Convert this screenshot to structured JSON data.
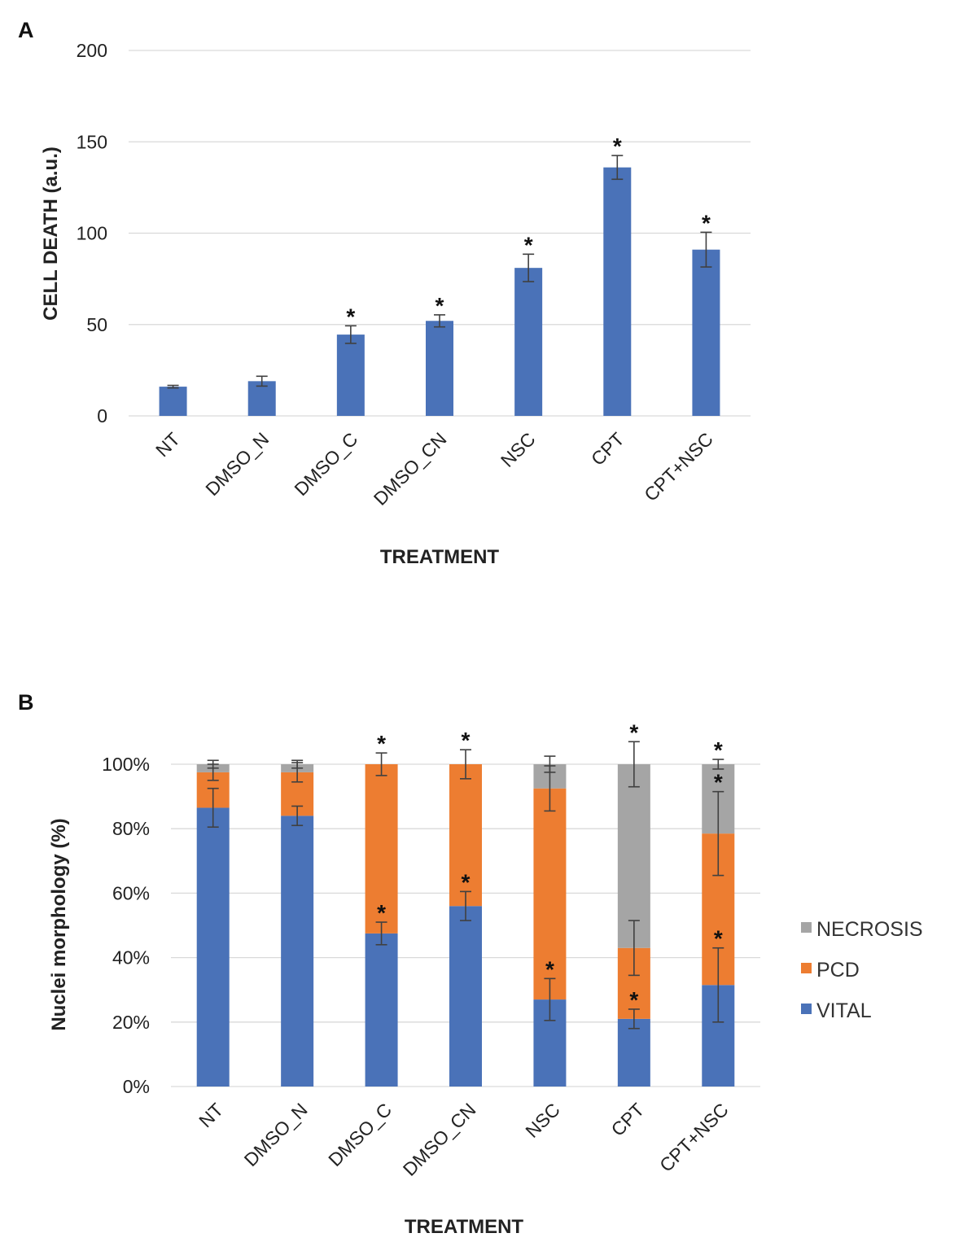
{
  "colors": {
    "vital": "#4a72b8",
    "pcd": "#ed7d31",
    "necrosis": "#a5a5a5",
    "grid": "#d9d9d9",
    "errorbar": "#404040"
  },
  "chart_data": [
    {
      "panel": "A",
      "type": "bar",
      "categories": [
        "NT",
        "DMSO_N",
        "DMSO_C",
        "DMSO_CN",
        "NSC",
        "CPT",
        "CPT+NSC"
      ],
      "values": [
        16,
        19,
        44.5,
        52,
        81,
        136,
        91
      ],
      "errors": [
        0.7,
        2.7,
        4.8,
        3.3,
        7.5,
        6.5,
        9.5
      ],
      "significance": [
        "",
        "",
        "*",
        "*",
        "*",
        "*",
        "*"
      ],
      "yticks": [
        "0",
        "50",
        "100",
        "150",
        "200"
      ],
      "ylim": [
        0,
        200
      ],
      "xlabel": "TREATMENT",
      "ylabel": "CELL DEATH (a.u.)",
      "grid": true
    },
    {
      "panel": "B",
      "type": "bar",
      "stacked": true,
      "categories": [
        "NT",
        "DMSO_N",
        "DMSO_C",
        "DMSO_CN",
        "NSC",
        "CPT",
        "CPT+NSC"
      ],
      "series": [
        {
          "name": "VITAL",
          "values": [
            86.5,
            84,
            47.5,
            56,
            27,
            21,
            31.5
          ],
          "errors": [
            6,
            3,
            3.5,
            4.5,
            6.5,
            3,
            11.5
          ],
          "significance": [
            "",
            "",
            "*",
            "*",
            "*",
            "*",
            "*"
          ]
        },
        {
          "name": "PCD",
          "values": [
            11,
            13.5,
            52.5,
            44,
            65.5,
            22,
            47
          ],
          "errors": [
            2.5,
            3,
            3.5,
            4.5,
            7,
            8.5,
            13
          ],
          "significance": [
            "",
            "",
            "*",
            "*",
            "",
            "",
            "*"
          ]
        },
        {
          "name": "NECROSIS",
          "values": [
            2.5,
            2.5,
            0,
            0,
            7.5,
            57,
            21.5
          ],
          "errors": [
            1.2,
            1.2,
            0,
            0,
            2.5,
            7,
            1.5
          ],
          "significance": [
            "",
            "",
            "",
            "",
            "",
            "*",
            "*"
          ]
        }
      ],
      "yticks": [
        "0%",
        "20%",
        "40%",
        "60%",
        "80%",
        "100%"
      ],
      "ylim": [
        0,
        100
      ],
      "xlabel": "TREATMENT",
      "ylabel": "Nuclei morphology (%)",
      "legend": [
        "NECROSIS",
        "PCD",
        "VITAL"
      ],
      "legend_position": "right",
      "grid": true
    }
  ]
}
